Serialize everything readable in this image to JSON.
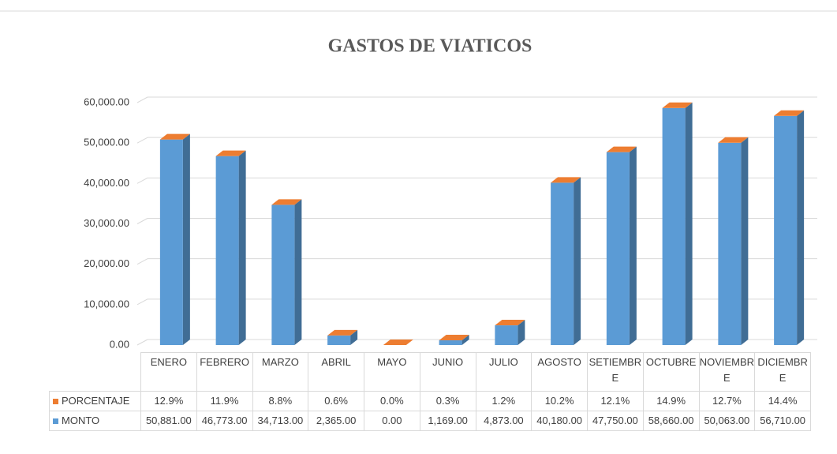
{
  "chart_data": {
    "type": "bar",
    "stacked": true,
    "three_d": true,
    "title": "GASTOS DE VIATICOS",
    "categories": [
      "ENERO",
      "FEBRERO",
      "MARZO",
      "ABRIL",
      "MAYO",
      "JUNIO",
      "JULIO",
      "AGOSTO",
      "SETIEMBRE",
      "OCTUBRE",
      "NOVIEMBRE",
      "DICIEMBRE"
    ],
    "series": [
      {
        "name": "PORCENTAJE",
        "color": "#ed7d31",
        "values": [
          12.9,
          11.9,
          8.8,
          0.6,
          0.0,
          0.3,
          1.2,
          10.2,
          12.1,
          14.9,
          12.7,
          14.4
        ],
        "value_labels": [
          "12.9%",
          "11.9%",
          "8.8%",
          "0.6%",
          "0.0%",
          "0.3%",
          "1.2%",
          "10.2%",
          "12.1%",
          "14.9%",
          "12.7%",
          "14.4%"
        ]
      },
      {
        "name": "MONTO",
        "color": "#5b9bd5",
        "values": [
          50881,
          46773,
          34713,
          2365,
          0,
          1169,
          4873,
          40180,
          47750,
          58660,
          50063,
          56710
        ],
        "value_labels": [
          "50,881.00",
          "46,773.00",
          "34,713.00",
          "2,365.00",
          "0.00",
          "1,169.00",
          "4,873.00",
          "40,180.00",
          "47,750.00",
          "58,660.00",
          "50,063.00",
          "56,710.00"
        ]
      }
    ],
    "ylim": [
      0,
      60000
    ],
    "yticks": [
      {
        "value": 0,
        "label": "0.00"
      },
      {
        "value": 10000,
        "label": "10,000.00"
      },
      {
        "value": 20000,
        "label": "20,000.00"
      },
      {
        "value": 30000,
        "label": "30,000.00"
      },
      {
        "value": 40000,
        "label": "40,000.00"
      },
      {
        "value": 50000,
        "label": "50,000.00"
      },
      {
        "value": 60000,
        "label": "60,000.00"
      }
    ],
    "grid": true,
    "data_table": true
  }
}
